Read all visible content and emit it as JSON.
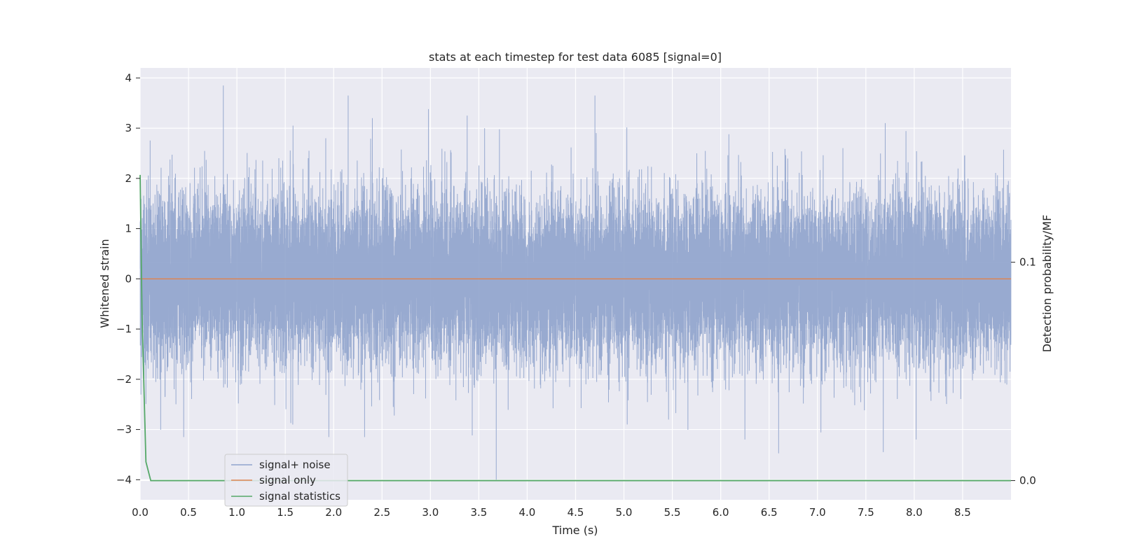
{
  "chart_data": {
    "type": "line",
    "title": "stats at each timestep for test data 6085 [signal=0]",
    "xlabel": "Time (s)",
    "ylabel": "Whitened strain",
    "y2label": "Detection probability/MF",
    "xlim": [
      0,
      9.0
    ],
    "ylim": [
      -4.4,
      4.2
    ],
    "y2lim": [
      -0.0088,
      0.189
    ],
    "xticks": [
      "0.0",
      "0.5",
      "1.0",
      "1.5",
      "2.0",
      "2.5",
      "3.0",
      "3.5",
      "4.0",
      "4.5",
      "5.0",
      "5.5",
      "6.0",
      "6.5",
      "7.0",
      "7.5",
      "8.0",
      "8.5"
    ],
    "yticks": [
      "4",
      "3",
      "2",
      "1",
      "0",
      "−1",
      "−2",
      "−3",
      "−4"
    ],
    "y2ticks": [
      "0.1",
      "0.0"
    ],
    "grid": true,
    "legend_position": "lower-left",
    "series": [
      {
        "name": "signal+ noise",
        "color": "#8fa3cc",
        "kind": "noise",
        "sample_rate_hz": 2048,
        "duration_s": 9.0,
        "std": 0.82,
        "peaks": [
          {
            "x": 0.86,
            "y": 3.85
          },
          {
            "x": 1.58,
            "y": 3.05
          },
          {
            "x": 2.15,
            "y": 3.65
          },
          {
            "x": 2.4,
            "y": 3.2
          },
          {
            "x": 2.98,
            "y": 3.38
          },
          {
            "x": 3.38,
            "y": 3.25
          },
          {
            "x": 3.56,
            "y": 3.0
          },
          {
            "x": 4.7,
            "y": 3.65
          },
          {
            "x": 7.7,
            "y": 3.1
          },
          {
            "x": 0.45,
            "y": -3.15
          },
          {
            "x": 1.95,
            "y": -3.15
          },
          {
            "x": 2.32,
            "y": -3.15
          },
          {
            "x": 3.68,
            "y": -4.0
          },
          {
            "x": 6.25,
            "y": -3.2
          },
          {
            "x": 7.68,
            "y": -3.45
          },
          {
            "x": 8.02,
            "y": -3.2
          }
        ]
      },
      {
        "name": "signal only",
        "color": "#dd8452",
        "x": [
          0,
          9.0
        ],
        "y": [
          0,
          0
        ]
      },
      {
        "name": "signal statistics",
        "color": "#55a868",
        "axis": "right",
        "x": [
          0,
          0.02,
          0.06,
          0.11,
          9.0
        ],
        "y": [
          0.14,
          0.075,
          0.0086,
          0.0,
          0.0
        ]
      }
    ]
  }
}
